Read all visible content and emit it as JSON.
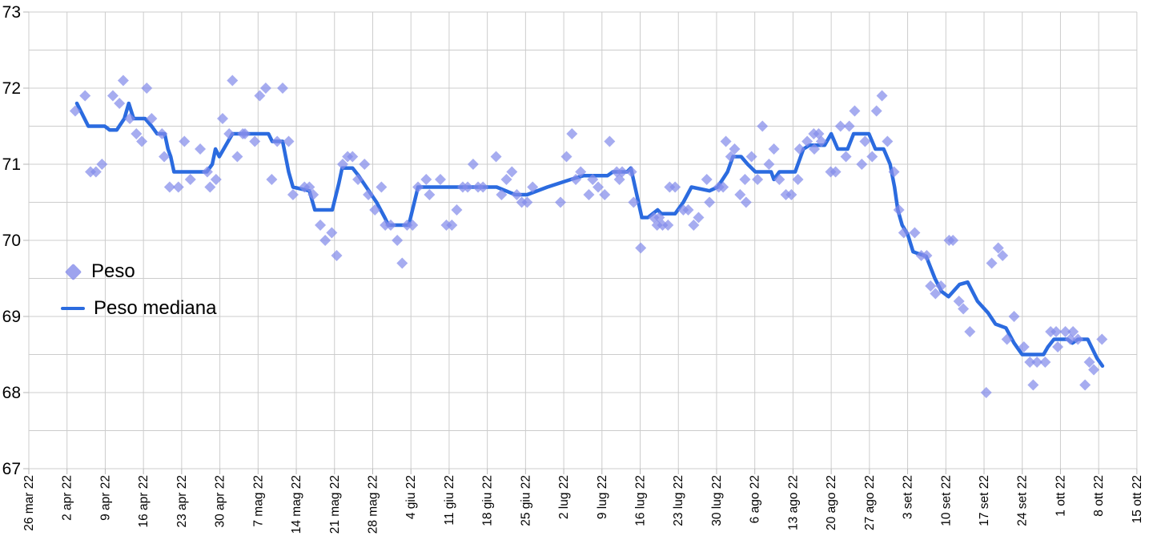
{
  "chart_data": {
    "type": "scatter",
    "title": "",
    "x_axis": {
      "unit": "days since 26 mar 22",
      "days_per_tick": 7,
      "tick_labels": [
        "26 mar 22",
        "2 apr 22",
        "9 apr 22",
        "16 apr 22",
        "23 apr 22",
        "30 apr 22",
        "7 mag 22",
        "14 mag 22",
        "21 mag 22",
        "28 mag 22",
        "4 giu 22",
        "11 giu 22",
        "18 giu 22",
        "25 giu 22",
        "2 lug 22",
        "9 lug 22",
        "16 lug 22",
        "23 lug 22",
        "30 lug 22",
        "6 ago 22",
        "13 ago 22",
        "20 ago 22",
        "27 ago 22",
        "3 set 22",
        "10 set 22",
        "17 set 22",
        "24 set 22",
        "1 ott 22",
        "8 ott 22",
        "15 ott 22"
      ]
    },
    "y_axis": {
      "min": 67,
      "max": 73,
      "label_step": 1,
      "grid_step": 0.5,
      "tick_labels": [
        "73",
        "72",
        "71",
        "70",
        "69",
        "68",
        "67"
      ]
    },
    "grid_color": "#cccccc",
    "tick_color": "#b7b7b7",
    "label_color": "#000000",
    "legend": [
      {
        "label": "Peso",
        "type": "diamond",
        "color": "#848cea"
      },
      {
        "label": "Peso mediana",
        "type": "line",
        "color": "#2b6bdf"
      }
    ],
    "series": [
      {
        "name": "Peso",
        "type": "scatter",
        "marker": "diamond",
        "color": "#848cea",
        "opacity": 0.72,
        "points": [
          [
            8.5,
            71.7
          ],
          [
            10.3,
            71.9
          ],
          [
            11.3,
            70.9
          ],
          [
            12.3,
            70.9
          ],
          [
            13.4,
            71.0
          ],
          [
            15.4,
            71.9
          ],
          [
            16.6,
            71.8
          ],
          [
            17.3,
            72.1
          ],
          [
            18.5,
            71.6
          ],
          [
            19.7,
            71.4
          ],
          [
            20.7,
            71.3
          ],
          [
            21.6,
            72.0
          ],
          [
            22.5,
            71.6
          ],
          [
            24.4,
            71.4
          ],
          [
            24.8,
            71.1
          ],
          [
            25.8,
            70.7
          ],
          [
            27.4,
            70.7
          ],
          [
            28.5,
            71.3
          ],
          [
            29.6,
            70.8
          ],
          [
            31.4,
            71.2
          ],
          [
            32.7,
            70.9
          ],
          [
            33.2,
            70.7
          ],
          [
            34.3,
            70.8
          ],
          [
            35.5,
            71.6
          ],
          [
            36.7,
            71.4
          ],
          [
            37.3,
            72.1
          ],
          [
            38.2,
            71.1
          ],
          [
            39.2,
            71.4
          ],
          [
            39.6,
            71.4
          ],
          [
            41.4,
            71.3
          ],
          [
            42.3,
            71.9
          ],
          [
            43.4,
            72.0
          ],
          [
            44.5,
            70.8
          ],
          [
            45.5,
            71.3
          ],
          [
            46.5,
            72.0
          ],
          [
            47.6,
            71.3
          ],
          [
            48.4,
            70.6
          ],
          [
            50.5,
            70.7
          ],
          [
            51.4,
            70.7
          ],
          [
            52.1,
            70.6
          ],
          [
            53.4,
            70.2
          ],
          [
            54.3,
            70.0
          ],
          [
            55.5,
            70.1
          ],
          [
            56.4,
            69.8
          ],
          [
            57.5,
            71.0
          ],
          [
            58.4,
            71.1
          ],
          [
            59.3,
            71.1
          ],
          [
            60.3,
            70.8
          ],
          [
            61.5,
            71.0
          ],
          [
            62.2,
            70.6
          ],
          [
            63.4,
            70.4
          ],
          [
            64.6,
            70.7
          ],
          [
            65.3,
            70.2
          ],
          [
            66.3,
            70.2
          ],
          [
            67.5,
            70.0
          ],
          [
            68.4,
            69.7
          ],
          [
            69.3,
            70.2
          ],
          [
            70.3,
            70.2
          ],
          [
            71.3,
            70.7
          ],
          [
            72.8,
            70.8
          ],
          [
            73.4,
            70.6
          ],
          [
            75.4,
            70.8
          ],
          [
            76.5,
            70.2
          ],
          [
            77.5,
            70.2
          ],
          [
            78.4,
            70.4
          ],
          [
            79.5,
            70.7
          ],
          [
            80.4,
            70.7
          ],
          [
            81.4,
            71.0
          ],
          [
            82.3,
            70.7
          ],
          [
            83.2,
            70.7
          ],
          [
            85.6,
            71.1
          ],
          [
            86.6,
            70.6
          ],
          [
            87.5,
            70.8
          ],
          [
            88.5,
            70.9
          ],
          [
            89.4,
            70.6
          ],
          [
            90.3,
            70.5
          ],
          [
            91.3,
            70.5
          ],
          [
            92.3,
            70.7
          ],
          [
            97.4,
            70.5
          ],
          [
            98.5,
            71.1
          ],
          [
            99.5,
            71.4
          ],
          [
            100.2,
            70.8
          ],
          [
            101.1,
            70.9
          ],
          [
            102.6,
            70.6
          ],
          [
            103.3,
            70.8
          ],
          [
            104.3,
            70.7
          ],
          [
            105.5,
            70.6
          ],
          [
            106.4,
            71.3
          ],
          [
            107.7,
            70.9
          ],
          [
            108.2,
            70.8
          ],
          [
            108.7,
            70.9
          ],
          [
            110.4,
            70.9
          ],
          [
            110.8,
            70.5
          ],
          [
            112.1,
            69.9
          ],
          [
            114.5,
            70.3
          ],
          [
            115.1,
            70.2
          ],
          [
            115.5,
            70.3
          ],
          [
            116.1,
            70.2
          ],
          [
            117.1,
            70.2
          ],
          [
            117.4,
            70.7
          ],
          [
            118.4,
            70.7
          ],
          [
            119.9,
            70.4
          ],
          [
            120.8,
            70.4
          ],
          [
            121.8,
            70.2
          ],
          [
            122.7,
            70.3
          ],
          [
            124.2,
            70.8
          ],
          [
            124.7,
            70.5
          ],
          [
            126.4,
            70.7
          ],
          [
            127.2,
            70.7
          ],
          [
            127.7,
            71.3
          ],
          [
            128.6,
            71.1
          ],
          [
            129.3,
            71.2
          ],
          [
            130.3,
            70.6
          ],
          [
            131.2,
            70.8
          ],
          [
            131.4,
            70.5
          ],
          [
            132.4,
            71.1
          ],
          [
            133.5,
            70.8
          ],
          [
            134.4,
            71.5
          ],
          [
            135.6,
            71.0
          ],
          [
            136.5,
            71.2
          ],
          [
            137.5,
            70.8
          ],
          [
            138.7,
            70.6
          ],
          [
            139.7,
            70.6
          ],
          [
            140.9,
            70.8
          ],
          [
            141.2,
            71.2
          ],
          [
            142.6,
            71.3
          ],
          [
            143.8,
            71.4
          ],
          [
            143.9,
            71.2
          ],
          [
            144.7,
            71.4
          ],
          [
            145.2,
            71.3
          ],
          [
            146.9,
            70.9
          ],
          [
            147.8,
            70.9
          ],
          [
            148.7,
            71.5
          ],
          [
            149.7,
            71.1
          ],
          [
            150.3,
            71.5
          ],
          [
            151.3,
            71.7
          ],
          [
            152.6,
            71.0
          ],
          [
            153.2,
            71.3
          ],
          [
            154.5,
            71.1
          ],
          [
            155.3,
            71.7
          ],
          [
            156.3,
            71.9
          ],
          [
            157.3,
            71.3
          ],
          [
            158.5,
            70.9
          ],
          [
            159.4,
            70.4
          ],
          [
            160.3,
            70.1
          ],
          [
            162.3,
            70.1
          ],
          [
            163.5,
            69.8
          ],
          [
            164.5,
            69.8
          ],
          [
            165.2,
            69.4
          ],
          [
            166.1,
            69.3
          ],
          [
            167.1,
            69.4
          ],
          [
            168.6,
            70.0
          ],
          [
            169.3,
            70.0
          ],
          [
            170.4,
            69.2
          ],
          [
            171.2,
            69.1
          ],
          [
            172.4,
            68.8
          ],
          [
            175.4,
            68.0
          ],
          [
            176.4,
            69.7
          ],
          [
            177.6,
            69.9
          ],
          [
            178.4,
            69.8
          ],
          [
            179.2,
            68.7
          ],
          [
            180.5,
            69.0
          ],
          [
            182.3,
            68.6
          ],
          [
            183.4,
            68.4
          ],
          [
            184.0,
            68.1
          ],
          [
            184.7,
            68.4
          ],
          [
            186.2,
            68.4
          ],
          [
            187.2,
            68.8
          ],
          [
            188.2,
            68.8
          ],
          [
            188.5,
            68.6
          ],
          [
            189.9,
            68.8
          ],
          [
            190.8,
            68.7
          ],
          [
            191.3,
            68.8
          ],
          [
            192.2,
            68.7
          ],
          [
            193.5,
            68.1
          ],
          [
            194.3,
            68.4
          ],
          [
            195.1,
            68.3
          ],
          [
            196.6,
            68.7
          ]
        ]
      },
      {
        "name": "Peso mediana",
        "type": "line",
        "color": "#2b6bdf",
        "width": 4.5,
        "points": [
          [
            8.8,
            71.8
          ],
          [
            10.9,
            71.5
          ],
          [
            13.9,
            71.5
          ],
          [
            14.8,
            71.45
          ],
          [
            16.1,
            71.45
          ],
          [
            17.5,
            71.6
          ],
          [
            18.3,
            71.8
          ],
          [
            19.2,
            71.6
          ],
          [
            21.3,
            71.6
          ],
          [
            22.5,
            71.5
          ],
          [
            23.5,
            71.4
          ],
          [
            24.9,
            71.4
          ],
          [
            25.5,
            71.2
          ],
          [
            26.0,
            71.1
          ],
          [
            26.6,
            70.9
          ],
          [
            32.6,
            70.9
          ],
          [
            33.6,
            71.0
          ],
          [
            34.2,
            71.2
          ],
          [
            34.9,
            71.1
          ],
          [
            37.3,
            71.4
          ],
          [
            43.9,
            71.4
          ],
          [
            44.6,
            71.3
          ],
          [
            46.5,
            71.3
          ],
          [
            47.6,
            70.9
          ],
          [
            48.4,
            70.7
          ],
          [
            51.4,
            70.65
          ],
          [
            52.4,
            70.4
          ],
          [
            55.6,
            70.4
          ],
          [
            56.8,
            70.75
          ],
          [
            57.4,
            70.95
          ],
          [
            59.3,
            70.95
          ],
          [
            60.4,
            70.85
          ],
          [
            63.7,
            70.5
          ],
          [
            65.2,
            70.3
          ],
          [
            65.9,
            70.2
          ],
          [
            69.6,
            70.2
          ],
          [
            71.3,
            70.7
          ],
          [
            85.7,
            70.7
          ],
          [
            89.1,
            70.6
          ],
          [
            91.3,
            70.6
          ],
          [
            95.0,
            70.7
          ],
          [
            99.3,
            70.8
          ],
          [
            101.6,
            70.85
          ],
          [
            106.0,
            70.85
          ],
          [
            107.0,
            70.9
          ],
          [
            109.6,
            70.9
          ],
          [
            110.3,
            70.95
          ],
          [
            112.3,
            70.3
          ],
          [
            113.4,
            70.3
          ],
          [
            115.2,
            70.4
          ],
          [
            115.9,
            70.35
          ],
          [
            118.4,
            70.35
          ],
          [
            119.9,
            70.5
          ],
          [
            121.4,
            70.7
          ],
          [
            124.7,
            70.65
          ],
          [
            126.2,
            70.7
          ],
          [
            128.0,
            70.9
          ],
          [
            129.0,
            71.1
          ],
          [
            130.5,
            71.1
          ],
          [
            131.7,
            71.0
          ],
          [
            133.1,
            70.9
          ],
          [
            136.0,
            70.9
          ],
          [
            136.5,
            70.8
          ],
          [
            137.5,
            70.9
          ],
          [
            140.4,
            70.9
          ],
          [
            141.9,
            71.2
          ],
          [
            143.0,
            71.25
          ],
          [
            145.8,
            71.25
          ],
          [
            147.0,
            71.4
          ],
          [
            148.2,
            71.2
          ],
          [
            150.0,
            71.2
          ],
          [
            151.1,
            71.4
          ],
          [
            153.9,
            71.4
          ],
          [
            155.1,
            71.2
          ],
          [
            156.6,
            71.2
          ],
          [
            157.8,
            71.0
          ],
          [
            158.6,
            70.7
          ],
          [
            159.2,
            70.4
          ],
          [
            160.0,
            70.2
          ],
          [
            161.0,
            70.08
          ],
          [
            162.0,
            69.85
          ],
          [
            164.4,
            69.79
          ],
          [
            166.0,
            69.5
          ],
          [
            167.2,
            69.33
          ],
          [
            168.5,
            69.26
          ],
          [
            170.5,
            69.42
          ],
          [
            172.0,
            69.45
          ],
          [
            173.8,
            69.2
          ],
          [
            175.7,
            69.05
          ],
          [
            177.1,
            68.9
          ],
          [
            179.0,
            68.85
          ],
          [
            180.5,
            68.65
          ],
          [
            181.5,
            68.55
          ],
          [
            182.0,
            68.5
          ],
          [
            185.9,
            68.5
          ],
          [
            186.7,
            68.6
          ],
          [
            187.8,
            68.7
          ],
          [
            190.3,
            68.7
          ],
          [
            191.2,
            68.65
          ],
          [
            192.2,
            68.7
          ],
          [
            194.0,
            68.7
          ],
          [
            195.7,
            68.45
          ],
          [
            196.7,
            68.35
          ]
        ]
      }
    ]
  }
}
